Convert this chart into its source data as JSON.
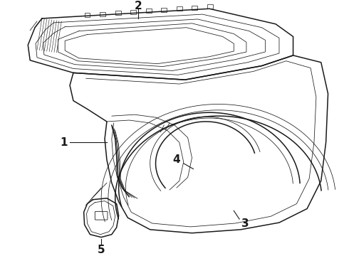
{
  "background_color": "#ffffff",
  "line_color": "#1a1a1a",
  "lw_main": 1.1,
  "lw_thin": 0.55,
  "lw_vthick": 1.4,
  "label_fontsize": 10,
  "label_bold": true
}
